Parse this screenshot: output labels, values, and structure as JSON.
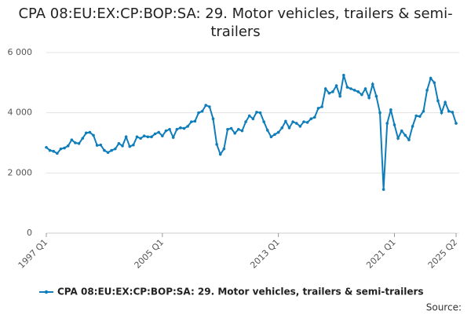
{
  "chart_data": {
    "type": "line",
    "title": "CPA 08:EU:EX:CP:BOP:SA: 29. Motor vehicles, trailers & semi-trailers",
    "source": "Source:",
    "categories": [
      "1997 Q1",
      null,
      null,
      null,
      null,
      null,
      null,
      null,
      null,
      null,
      null,
      null,
      null,
      null,
      null,
      null,
      null,
      null,
      null,
      null,
      null,
      null,
      null,
      null,
      null,
      null,
      null,
      null,
      null,
      null,
      null,
      null,
      "2005 Q1",
      null,
      null,
      null,
      null,
      null,
      null,
      null,
      null,
      null,
      null,
      null,
      null,
      null,
      null,
      null,
      null,
      null,
      null,
      null,
      null,
      null,
      null,
      null,
      null,
      null,
      null,
      null,
      null,
      null,
      null,
      null,
      "2013 Q1",
      null,
      null,
      null,
      null,
      null,
      null,
      null,
      null,
      null,
      null,
      null,
      null,
      null,
      null,
      null,
      null,
      null,
      null,
      null,
      null,
      null,
      null,
      null,
      null,
      null,
      null,
      null,
      null,
      null,
      null,
      null,
      "2021 Q1",
      null,
      null,
      null,
      null,
      null,
      null,
      null,
      null,
      null,
      null,
      null,
      null,
      null,
      null,
      null,
      null,
      "2025 Q2"
    ],
    "series": [
      {
        "name": "CPA 08:EU:EX:CP:BOP:SA: 29. Motor vehicles, trailers & semi-trailers",
        "color": "#0f7dba",
        "values": [
          2850,
          2750,
          2720,
          2650,
          2800,
          2830,
          2900,
          3100,
          3000,
          2980,
          3150,
          3330,
          3350,
          3250,
          2920,
          2930,
          2750,
          2680,
          2750,
          2800,
          2980,
          2900,
          3200,
          2880,
          2930,
          3200,
          3150,
          3230,
          3200,
          3200,
          3300,
          3350,
          3230,
          3400,
          3450,
          3180,
          3450,
          3500,
          3480,
          3550,
          3700,
          3720,
          4000,
          4050,
          4250,
          4200,
          3800,
          2950,
          2620,
          2800,
          3450,
          3480,
          3320,
          3450,
          3400,
          3700,
          3900,
          3800,
          4020,
          4000,
          3700,
          3420,
          3200,
          3280,
          3350,
          3500,
          3720,
          3500,
          3700,
          3650,
          3550,
          3700,
          3680,
          3800,
          3850,
          4150,
          4200,
          4800,
          4650,
          4700,
          4900,
          4550,
          5250,
          4850,
          4800,
          4750,
          4700,
          4600,
          4800,
          4500,
          4950,
          4550,
          4000,
          1450,
          3650,
          4100,
          3600,
          3150,
          3400,
          3250,
          3100,
          3550,
          3900,
          3880,
          4050,
          4750,
          5150,
          5000,
          4400,
          4000,
          4350,
          4050,
          4020,
          3650
        ]
      }
    ],
    "ylim": [
      0,
      6000
    ],
    "yticks": [
      0,
      {
        "value": 2000,
        "label": "2 000"
      },
      {
        "value": 4000,
        "label": "4 000"
      },
      {
        "value": 6000,
        "label": "6 000"
      }
    ],
    "grid": true,
    "legend": "bottom"
  }
}
